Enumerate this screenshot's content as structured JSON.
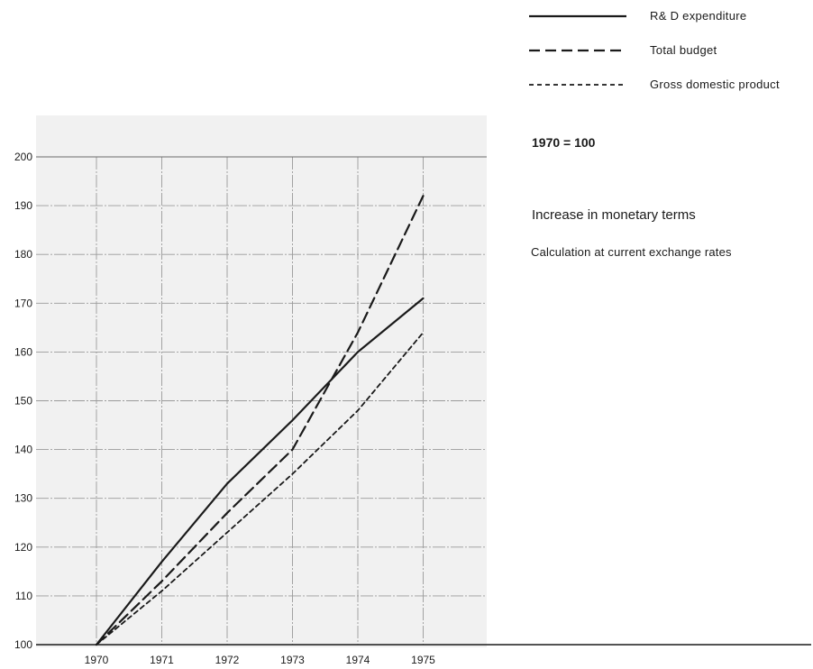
{
  "chart_data": {
    "type": "line",
    "x": [
      "1970",
      "1971",
      "1972",
      "1973",
      "1974",
      "1975"
    ],
    "ylim": [
      100,
      200
    ],
    "yticks": [
      200,
      190,
      180,
      170,
      160,
      150,
      140,
      130,
      120,
      110,
      100
    ],
    "grid": true,
    "legend_position": "top-right",
    "series": [
      {
        "name": "R& D expenditure",
        "style": "solid",
        "values": [
          100,
          117,
          133,
          146,
          160,
          171
        ]
      },
      {
        "name": "Total budget",
        "style": "long-dash",
        "values": [
          100,
          113,
          127,
          140,
          164,
          192
        ]
      },
      {
        "name": "Gross domestic product",
        "style": "short-dash",
        "values": [
          100,
          111,
          123,
          135,
          148,
          164
        ]
      }
    ],
    "index_note": "1970 = 100",
    "subtitle": "Increase in monetary terms",
    "note": "Calculation at current exchange rates"
  }
}
